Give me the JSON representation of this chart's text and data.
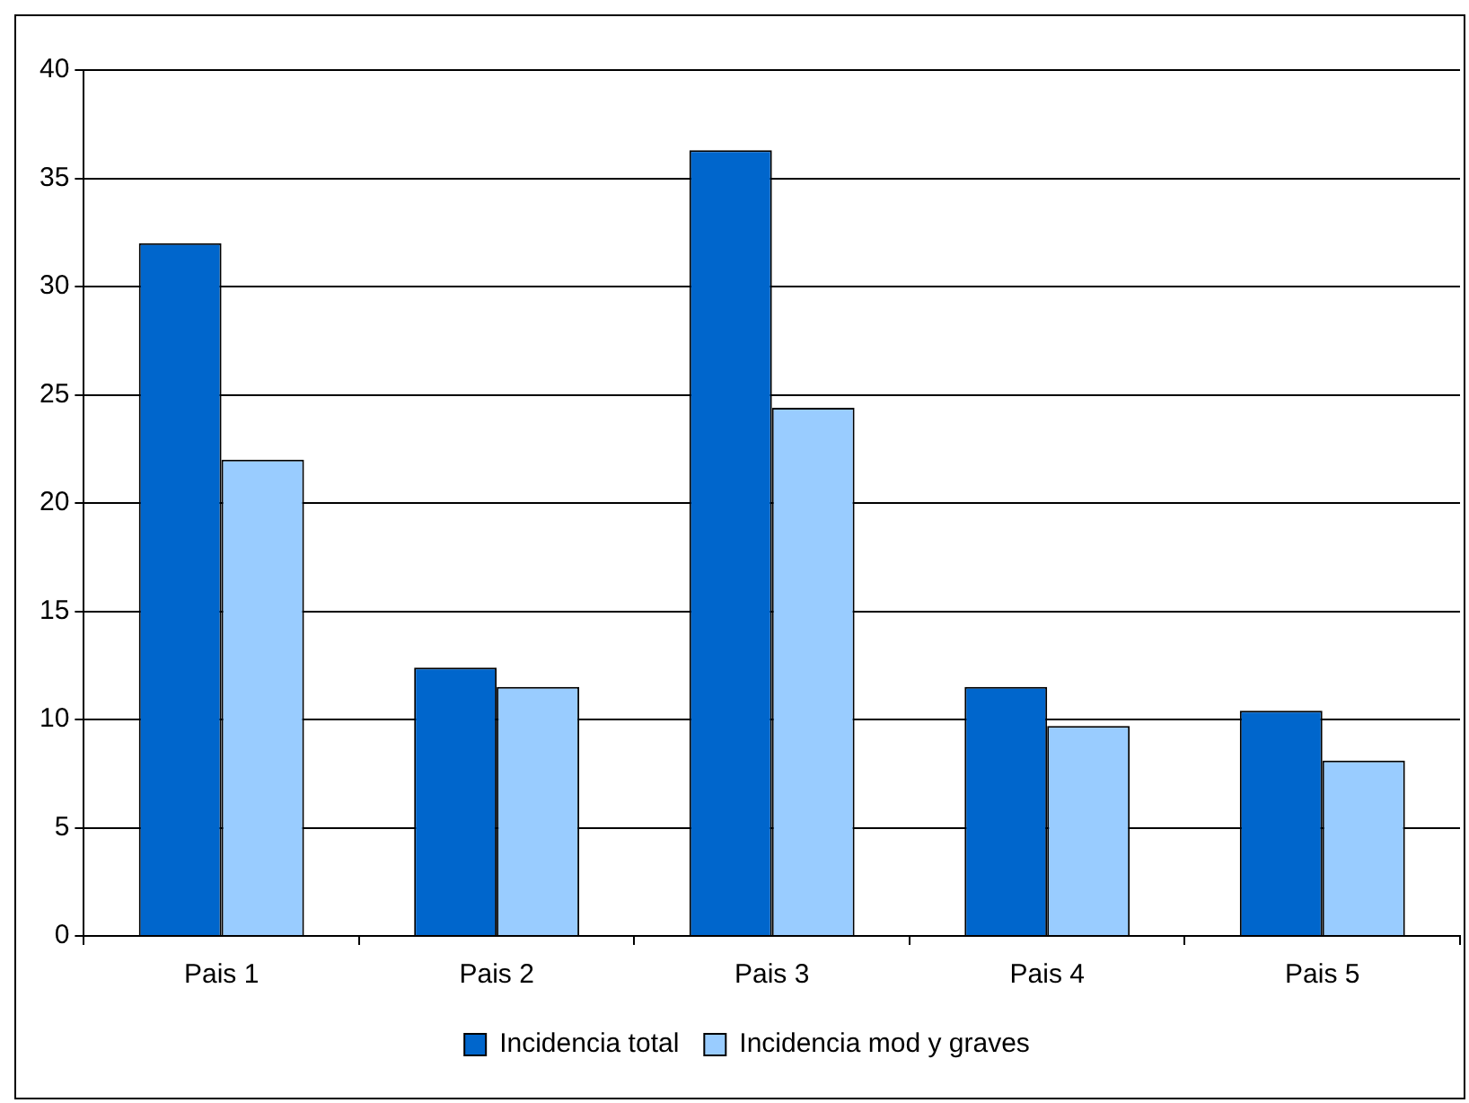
{
  "chart_data": {
    "type": "bar",
    "categories": [
      "Pais 1",
      "Pais 2",
      "Pais 3",
      "Pais 4",
      "Pais 5"
    ],
    "series": [
      {
        "name": "Incidencia total",
        "color": "#0066cc",
        "values": [
          32,
          12.4,
          36.3,
          11.5,
          10.4
        ]
      },
      {
        "name": "Incidencia mod y graves",
        "color": "#99ccff",
        "values": [
          22,
          11.5,
          24.4,
          9.7,
          8.1
        ]
      }
    ],
    "ylim": [
      0,
      40
    ],
    "yticks": [
      0,
      5,
      10,
      15,
      20,
      25,
      30,
      35,
      40
    ],
    "grid": "y",
    "legend": "bottom"
  }
}
